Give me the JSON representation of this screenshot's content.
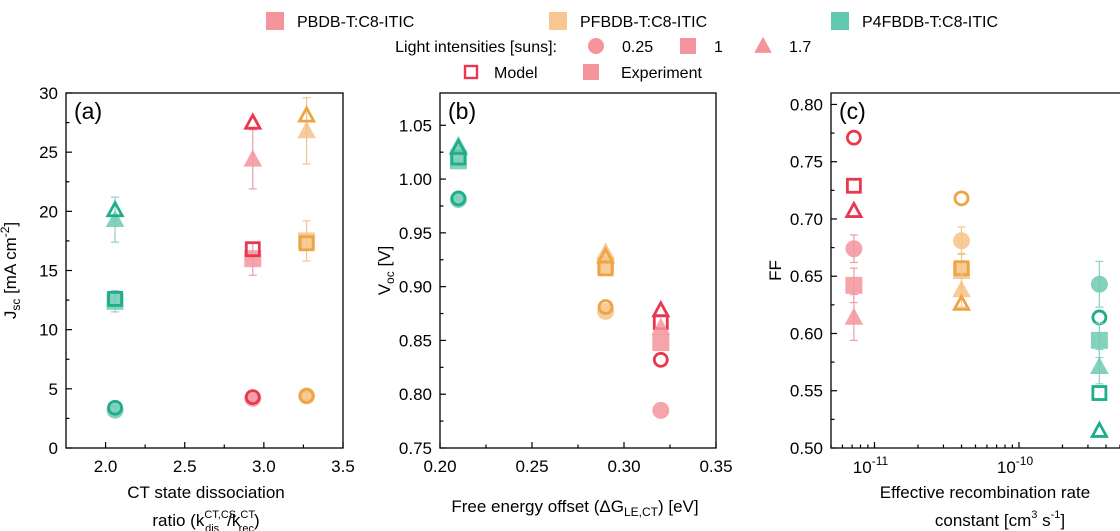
{
  "legend": {
    "materials": [
      {
        "label": "PBDB-T:C8-ITIC",
        "color": "#f0717e"
      },
      {
        "label": "PFBDB-T:C8-ITIC",
        "color": "#f4b46a"
      },
      {
        "label": "P4FBDB-T:C8-ITIC",
        "color": "#2fb596"
      }
    ],
    "intensity_title": "Light intensities [suns]:",
    "intensities": [
      {
        "label": "0.25",
        "shape": "circle"
      },
      {
        "label": "1",
        "shape": "square"
      },
      {
        "label": "1.7",
        "shape": "triangle"
      }
    ],
    "model_label": "Model",
    "experiment_label": "Experiment"
  },
  "colors": {
    "PBDB": {
      "exp": "#f5949d",
      "model": "#e8384f",
      "err": "#e8a0a8"
    },
    "PFBDB": {
      "exp": "#f6c388",
      "model": "#eea442",
      "err": "#efc690"
    },
    "P4FBDB": {
      "exp": "#6fcab3",
      "model": "#1fad8c",
      "err": "#8fd0c0"
    }
  },
  "chart_data": [
    {
      "panel": "(a)",
      "type": "scatter",
      "xlabel": "CT state dissociation",
      "xlabel2_prefix": "ratio (k",
      "xlabel2_sup1": "CT,CS",
      "xlabel2_sub1": "dis",
      "xlabel2_mid": "/k",
      "xlabel2_sup2": "CT",
      "xlabel2_sub2": "rec",
      "xlabel2_suffix": ")",
      "ylabel_main": "J",
      "ylabel_sub": "sc",
      "ylabel_rest": " [mA cm",
      "ylabel_sup": "-2",
      "ylabel_end": "]",
      "xlim": [
        1.75,
        3.5
      ],
      "ylim": [
        0,
        30
      ],
      "xticks": [
        2.0,
        2.5,
        3.0,
        3.5
      ],
      "xtick_labels": [
        "2.0",
        "2.5",
        "3.0",
        "3.5"
      ],
      "yticks": [
        0,
        5,
        10,
        15,
        20,
        25,
        30
      ],
      "ytick_labels": [
        "0",
        "5",
        "10",
        "15",
        "20",
        "25",
        "30"
      ],
      "series": [
        {
          "material": "P4FBDB",
          "x": 2.06,
          "intensity": "0.25",
          "experiment": 3.2,
          "err": 0.3,
          "model": 3.4
        },
        {
          "material": "P4FBDB",
          "x": 2.06,
          "intensity": "1",
          "experiment": 12.4,
          "err": 0.9,
          "model": 12.6
        },
        {
          "material": "P4FBDB",
          "x": 2.06,
          "intensity": "1.7",
          "experiment": 19.3,
          "err": 1.9,
          "model": 20.1
        },
        {
          "material": "PBDB",
          "x": 2.93,
          "intensity": "0.25",
          "experiment": 4.2,
          "err": 0.2,
          "model": 4.3
        },
        {
          "material": "PBDB",
          "x": 2.93,
          "intensity": "1",
          "experiment": 16.0,
          "err": 1.4,
          "model": 16.8
        },
        {
          "material": "PBDB",
          "x": 2.93,
          "intensity": "1.7",
          "experiment": 24.4,
          "err": 2.5,
          "model": 27.5
        },
        {
          "material": "PFBDB",
          "x": 3.27,
          "intensity": "0.25",
          "experiment": 4.4,
          "err": 0.3,
          "model": 4.4
        },
        {
          "material": "PFBDB",
          "x": 3.27,
          "intensity": "1",
          "experiment": 17.5,
          "err": 1.7,
          "model": 17.3
        },
        {
          "material": "PFBDB",
          "x": 3.27,
          "intensity": "1.7",
          "experiment": 26.8,
          "err": 2.8,
          "model": 28.1
        }
      ]
    },
    {
      "panel": "(b)",
      "type": "scatter",
      "xlabel_prefix": "Free energy offset (ΔG",
      "xlabel_sub": "LE,CT",
      "xlabel_suffix": ") [eV]",
      "ylabel_main": "V",
      "ylabel_sub": "oc",
      "ylabel_rest": " [V]",
      "xlim": [
        0.2,
        0.35
      ],
      "ylim": [
        0.75,
        1.08
      ],
      "xticks": [
        0.2,
        0.25,
        0.3,
        0.35
      ],
      "xtick_labels": [
        "0.20",
        "0.25",
        "0.30",
        "0.35"
      ],
      "yticks": [
        0.75,
        0.8,
        0.85,
        0.9,
        0.95,
        1.0,
        1.05
      ],
      "ytick_labels": [
        "0.75",
        "0.80",
        "0.85",
        "0.90",
        "0.95",
        "1.00",
        "1.05"
      ],
      "series": [
        {
          "material": "P4FBDB",
          "x": 0.21,
          "intensity": "0.25",
          "experiment": 0.981,
          "err": 0,
          "model": 0.982
        },
        {
          "material": "P4FBDB",
          "x": 0.21,
          "intensity": "1",
          "experiment": 1.017,
          "err": 0,
          "model": 1.02
        },
        {
          "material": "P4FBDB",
          "x": 0.21,
          "intensity": "1.7",
          "experiment": 1.031,
          "err": 0,
          "model": 1.029
        },
        {
          "material": "PFBDB",
          "x": 0.29,
          "intensity": "0.25",
          "experiment": 0.877,
          "err": 0,
          "model": 0.881
        },
        {
          "material": "PFBDB",
          "x": 0.29,
          "intensity": "1",
          "experiment": 0.92,
          "err": 0,
          "model": 0.917
        },
        {
          "material": "PFBDB",
          "x": 0.29,
          "intensity": "1.7",
          "experiment": 0.932,
          "err": 0,
          "model": 0.928
        },
        {
          "material": "PBDB",
          "x": 0.32,
          "intensity": "0.25",
          "experiment": 0.785,
          "err": 0,
          "model": 0.832
        },
        {
          "material": "PBDB",
          "x": 0.32,
          "intensity": "1",
          "experiment": 0.848,
          "err": 0,
          "model": 0.867
        },
        {
          "material": "PBDB",
          "x": 0.32,
          "intensity": "1.7",
          "experiment": 0.862,
          "err": 0,
          "model": 0.878
        }
      ]
    },
    {
      "panel": "(c)",
      "type": "scatter",
      "xscale": "log",
      "xlabel": "Effective recombination rate",
      "xlabel2_prefix": "constant [cm",
      "xlabel2_sup1": "3",
      "xlabel2_mid": " s",
      "xlabel2_sup2": "-1",
      "xlabel2_suffix": "]",
      "ylabel_main": "FF",
      "xlim": [
        5e-12,
        5e-10
      ],
      "ylim": [
        0.5,
        0.81
      ],
      "xticks": [
        1e-11,
        1e-10
      ],
      "xtick_base": "10",
      "xtick_exps": [
        "-11",
        "-10"
      ],
      "yticks": [
        0.5,
        0.55,
        0.6,
        0.65,
        0.7,
        0.75,
        0.8
      ],
      "ytick_labels": [
        "0.50",
        "0.55",
        "0.60",
        "0.65",
        "0.70",
        "0.75",
        "0.80"
      ],
      "series": [
        {
          "material": "PBDB",
          "x": 7.2e-12,
          "intensity": "0.25",
          "experiment": 0.674,
          "err": 0.012,
          "model": 0.771
        },
        {
          "material": "PBDB",
          "x": 7.2e-12,
          "intensity": "1",
          "experiment": 0.642,
          "err": 0.015,
          "model": 0.729
        },
        {
          "material": "PBDB",
          "x": 7.2e-12,
          "intensity": "1.7",
          "experiment": 0.614,
          "err": 0.02,
          "model": 0.707
        },
        {
          "material": "PFBDB",
          "x": 4e-11,
          "intensity": "0.25",
          "experiment": 0.681,
          "err": 0.012,
          "model": 0.718
        },
        {
          "material": "PFBDB",
          "x": 4e-11,
          "intensity": "1",
          "experiment": 0.655,
          "err": 0.015,
          "model": 0.657
        },
        {
          "material": "PFBDB",
          "x": 4e-11,
          "intensity": "1.7",
          "experiment": 0.638,
          "err": 0.015,
          "model": 0.626
        },
        {
          "material": "P4FBDB",
          "x": 3.6e-10,
          "intensity": "0.25",
          "experiment": 0.643,
          "err": 0.02,
          "model": 0.614
        },
        {
          "material": "P4FBDB",
          "x": 3.6e-10,
          "intensity": "1",
          "experiment": 0.594,
          "err": 0.015,
          "model": 0.548
        },
        {
          "material": "P4FBDB",
          "x": 3.6e-10,
          "intensity": "1.7",
          "experiment": 0.571,
          "err": 0.015,
          "model": 0.515
        }
      ]
    }
  ]
}
